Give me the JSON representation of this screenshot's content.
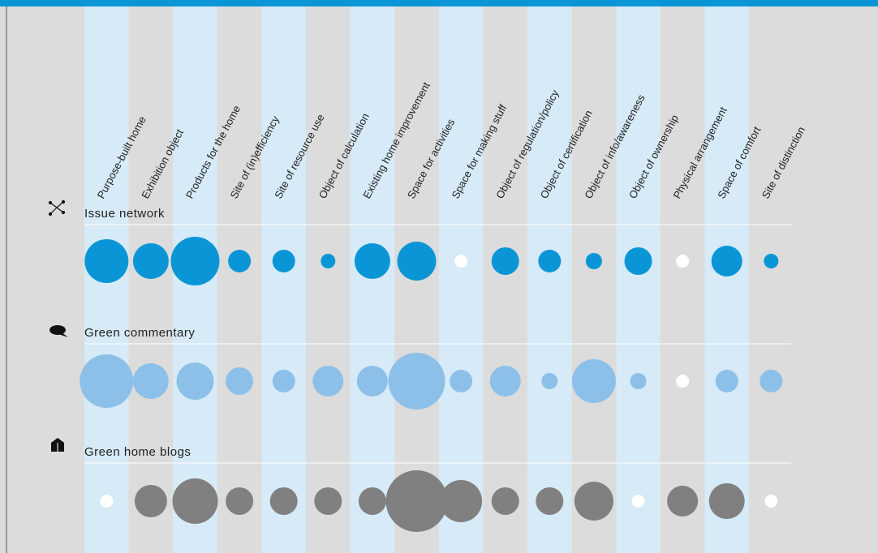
{
  "chart_data": {
    "type": "bubble-grid",
    "categories": [
      "Purpose-built home",
      "Exhibition object",
      "Products for the home",
      "Site of (in)efficiency",
      "Site of resource use",
      "Object of calculation",
      "Existing home improvement",
      "Space for activities",
      "Space for making stuff",
      "Object of regulation/policy",
      "Object of certification",
      "Object of info/awareness",
      "Object of ownership",
      "Physical arrangement",
      "Space of comfort",
      "Site of distinction"
    ],
    "series": [
      {
        "name": "Issue network",
        "color": "#0a96d6",
        "values": [
          27,
          22,
          30,
          14,
          14,
          9,
          22,
          24,
          0,
          17,
          14,
          10,
          17,
          0,
          19,
          9
        ]
      },
      {
        "name": "Green commentary",
        "color": "#8dc0e8",
        "values": [
          33,
          22,
          23,
          17,
          14,
          19,
          19,
          35,
          14,
          19,
          10,
          27,
          10,
          0,
          14,
          14
        ]
      },
      {
        "name": "Green home blogs",
        "color": "#808080",
        "values": [
          0,
          20,
          28,
          17,
          17,
          17,
          17,
          38,
          26,
          17,
          17,
          24,
          0,
          19,
          22,
          0
        ]
      }
    ]
  }
}
